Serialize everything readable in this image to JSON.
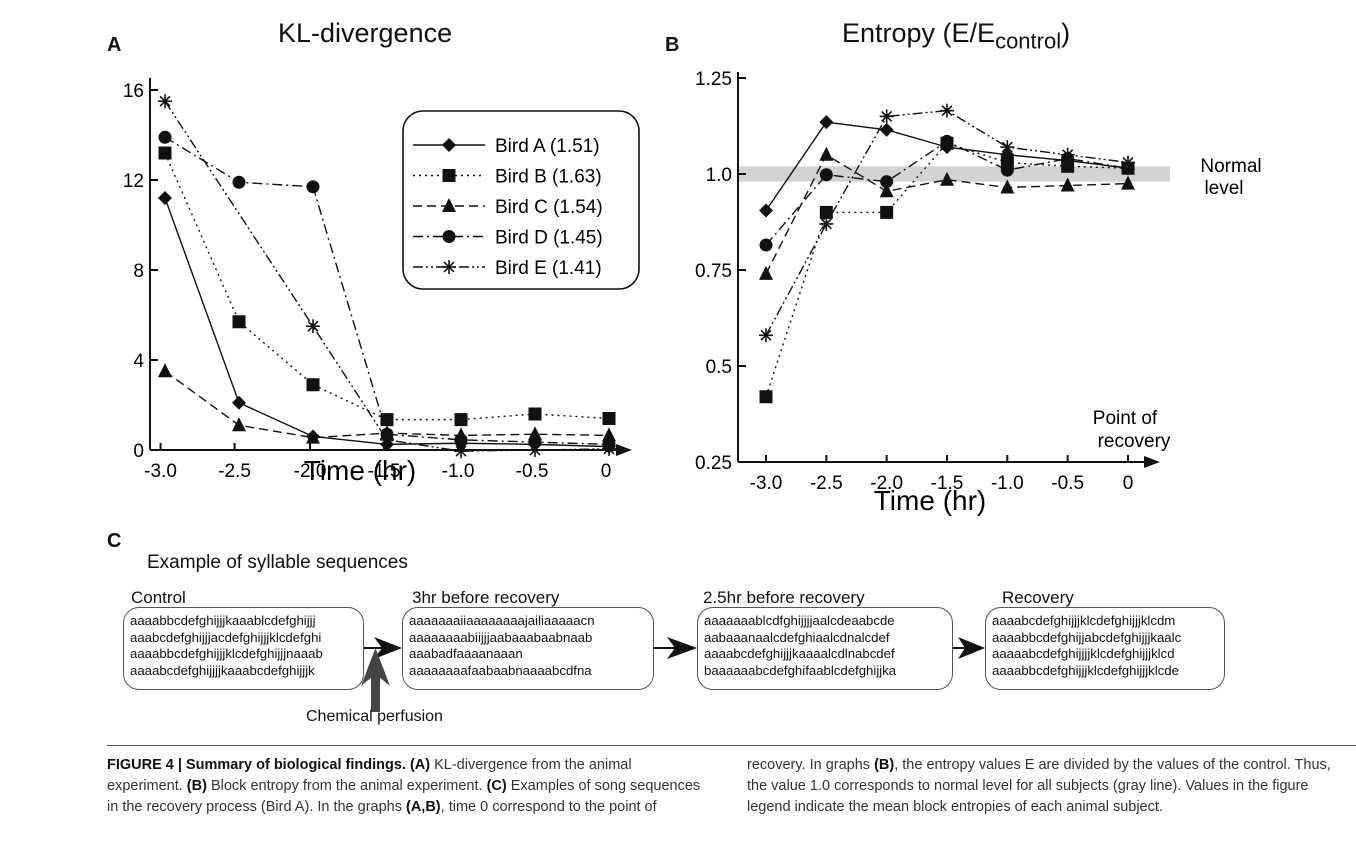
{
  "panel_a": {
    "letter": "A",
    "title": "KL-divergence"
  },
  "panel_b": {
    "letter": "B",
    "title_main": "Entropy (E/E",
    "title_sub": "control",
    "title_end": ")",
    "normal_level_line1": "Normal",
    "normal_level_line2": "level",
    "recovery_line1": "Point of",
    "recovery_line2": "recovery"
  },
  "chart_data": [
    {
      "type": "line",
      "panel": "A",
      "title": "KL-divergence",
      "xlabel": "Time (hr)",
      "ylabel": "",
      "x_ticks": [
        "-3.0",
        "-2.5",
        "-2.0",
        "-1.5",
        "-1.0",
        "-0.5",
        "0"
      ],
      "y_ticks": [
        "0",
        "4",
        "8",
        "12",
        "16"
      ],
      "xlim": [
        -3.2,
        0.2
      ],
      "ylim": [
        0,
        16
      ],
      "legend_position": "top-right",
      "series": [
        {
          "name": "Bird A (1.51)",
          "marker": "diamond",
          "dash": "solid",
          "x": [
            -2.9,
            -2.4,
            -1.9,
            -1.4,
            -0.9,
            -0.4,
            0.1
          ],
          "y": [
            11.2,
            2.1,
            0.6,
            0.25,
            0.3,
            0.25,
            0.15
          ]
        },
        {
          "name": "Bird B (1.63)",
          "marker": "square",
          "dash": "dotted",
          "x": [
            -2.9,
            -2.4,
            -1.9,
            -1.4,
            -0.9,
            -0.4,
            0.1
          ],
          "y": [
            13.2,
            5.7,
            2.9,
            1.35,
            1.35,
            1.6,
            1.4
          ]
        },
        {
          "name": "Bird C (1.54)",
          "marker": "triangle",
          "dash": "dashed",
          "x": [
            -2.9,
            -2.4,
            -1.9,
            -1.4,
            -0.9,
            -0.4,
            0.1
          ],
          "y": [
            3.5,
            1.1,
            0.55,
            0.75,
            0.65,
            0.7,
            0.65
          ]
        },
        {
          "name": "Bird D (1.45)",
          "marker": "circle",
          "dash": "dashdot",
          "x": [
            -2.9,
            -2.4,
            -1.9,
            -1.4,
            -0.9,
            -0.4,
            0.1
          ],
          "y": [
            13.9,
            11.9,
            11.7,
            0.7,
            0.45,
            0.35,
            0.25
          ]
        },
        {
          "name": "Bird E (1.41)",
          "marker": "asterisk",
          "dash": "dashdotdot",
          "x": [
            -2.9,
            -2.4,
            -1.9,
            -1.4,
            -0.9,
            -0.4,
            0.1
          ],
          "y": [
            15.5,
            null,
            5.5,
            0.45,
            -0.05,
            0.0,
            0.05
          ]
        }
      ]
    },
    {
      "type": "line",
      "panel": "B",
      "title": "Entropy (E/E_control)",
      "xlabel": "Time (hr)",
      "ylabel": "",
      "x_ticks": [
        "-3.0",
        "-2.5",
        "-2.0",
        "-1.5",
        "-1.0",
        "-0.5",
        "0"
      ],
      "y_ticks": [
        "0.25",
        "0.5",
        "0.75",
        "1.0",
        "1.25"
      ],
      "xlim": [
        -3.3,
        0.2
      ],
      "ylim": [
        0.25,
        1.25
      ],
      "normal_level_band": [
        0.98,
        1.02
      ],
      "series": [
        {
          "name": "Bird A",
          "marker": "diamond",
          "dash": "solid",
          "x": [
            -3.0,
            -2.5,
            -2.0,
            -1.5,
            -1.0,
            -0.5,
            0
          ],
          "y": [
            0.905,
            1.135,
            1.115,
            1.07,
            1.05,
            1.035,
            1.015
          ]
        },
        {
          "name": "Bird B",
          "marker": "square",
          "dash": "dotted",
          "x": [
            -3.0,
            -2.5,
            -2.0,
            -1.5,
            -1.0,
            -0.5,
            0
          ],
          "y": [
            0.42,
            0.9,
            0.9,
            1.08,
            1.03,
            1.02,
            1.015
          ]
        },
        {
          "name": "Bird C",
          "marker": "triangle",
          "dash": "dashed",
          "x": [
            -3.0,
            -2.5,
            -2.0,
            -1.5,
            -1.0,
            -0.5,
            0
          ],
          "y": [
            0.74,
            1.05,
            0.955,
            0.985,
            0.965,
            0.97,
            0.975
          ]
        },
        {
          "name": "Bird D",
          "marker": "circle",
          "dash": "dashdot",
          "x": [
            -3.0,
            -2.5,
            -2.0,
            -1.5,
            -1.0,
            -0.5,
            0
          ],
          "y": [
            0.815,
            0.998,
            0.98,
            1.085,
            1.01,
            1.04,
            1.015
          ]
        },
        {
          "name": "Bird E",
          "marker": "asterisk",
          "dash": "dashdotdot",
          "x": [
            -3.0,
            -2.5,
            -2.0,
            -1.5,
            -1.0,
            -0.5,
            0
          ],
          "y": [
            0.58,
            0.87,
            1.15,
            1.165,
            1.07,
            1.05,
            1.03
          ]
        }
      ]
    }
  ],
  "panel_c": {
    "letter": "C",
    "heading": "Example of syllable sequences",
    "blocks": [
      {
        "label": "Control",
        "lines": [
          "aaaabbcdefghijjjkaaablcdefghijjj",
          "aaabcdefghijjjacdefghijjjklcdefghi",
          "aaaabbcdefghijjjklcdefghijjjnaaab",
          "aaaabcdefghijjjjkaaabcdefghijjjk"
        ]
      },
      {
        "label": "3hr before recovery",
        "lines": [
          "aaaaaaaiiaaaaaaaajailiaaaaacn",
          "aaaaaaaabiijjjaabaaabaabnaab",
          "aaabadfaaaanaaan",
          "aaaaaaaafaabaabnaaaabcdfna"
        ]
      },
      {
        "label": "2.5hr before recovery",
        "lines": [
          "aaaaaaablcdfghijjjjaalcdeaabcde",
          "aabaaanaalcdefghiaalcdnalcdef",
          "aaaabcdefghijjjkaaaalcdlnabcdef",
          "baaaaaabcdefghifaablcdefghijjka"
        ]
      },
      {
        "label": "Recovery",
        "lines": [
          "aaaabcdefghijjjklcdefghijjjklcdm",
          "aaaabbcdefghijjabcdefghijjjkaalc",
          "aaaaabcdefghijjjjklcdefghijjjklcd",
          "aaaabbcdefghijjjklcdefghijjjklcde"
        ]
      }
    ],
    "perfusion_label": "Chemical perfusion"
  },
  "caption": {
    "bold_title": "FIGURE 4 | Summary of biological findings.",
    "ref_a": "(A)",
    "text_a": " KL-divergence from the animal experiment. ",
    "ref_b": "(B)",
    "text_b": " Block entropy from the animal experiment. ",
    "ref_c": "(C)",
    "text_c": " Examples of song sequences in the recovery process (Bird A). In the graphs ",
    "ref_ab": "(A,B)",
    "text_ab": ", time 0 correspond to the point of recovery. In graphs ",
    "ref_b2": "(B)",
    "text_end": ", the entropy values E are divided by the values of the control. Thus, the value 1.0 corresponds to normal level for all subjects (gray line). Values in the figure legend indicate the mean block entropies of each animal subject."
  }
}
